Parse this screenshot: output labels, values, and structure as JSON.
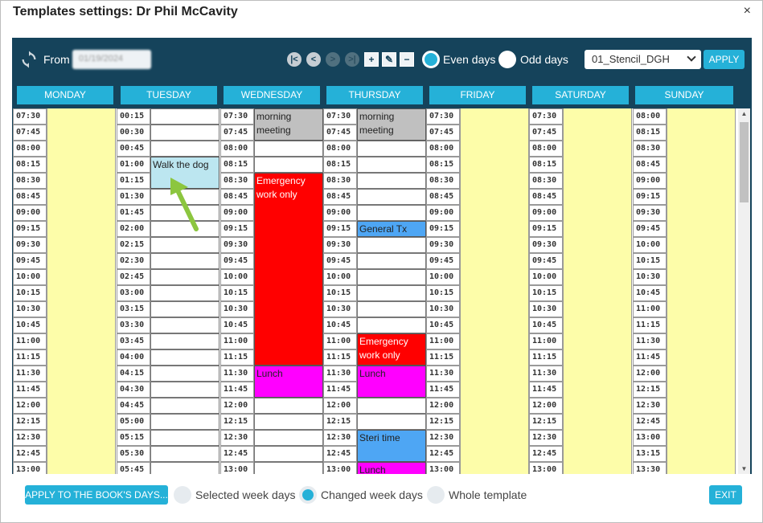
{
  "window": {
    "title": "Templates settings: Dr Phil McCavity",
    "close": "×"
  },
  "toolbar": {
    "from_label": "From",
    "from_value": "01/19/2024",
    "nav": [
      "|<",
      "<",
      ">",
      ">|"
    ],
    "tools": [
      "+",
      "✎",
      "−"
    ],
    "even_days": "Even days",
    "odd_days": "Odd days",
    "stencil": "01_Stencil_DGH",
    "apply": "APPLY"
  },
  "days": [
    "MONDAY",
    "TUESDAY",
    "WEDNESDAY",
    "THURSDAY",
    "FRIDAY",
    "SATURDAY",
    "SUNDAY"
  ],
  "times": {
    "monday": [
      "07:30",
      "07:45",
      "08:00",
      "08:15",
      "08:30",
      "08:45",
      "09:00",
      "09:15",
      "09:30",
      "09:45",
      "10:00",
      "10:15",
      "10:30",
      "10:45",
      "11:00",
      "11:15",
      "11:30",
      "11:45",
      "12:00",
      "12:15",
      "12:30",
      "12:45",
      "13:00"
    ],
    "tuesday": [
      "00:15",
      "00:30",
      "00:45",
      "01:00",
      "01:15",
      "01:30",
      "01:45",
      "02:00",
      "02:15",
      "02:30",
      "02:45",
      "03:00",
      "03:15",
      "03:30",
      "03:45",
      "04:00",
      "04:15",
      "04:30",
      "04:45",
      "05:00",
      "05:15",
      "05:30",
      "05:45"
    ],
    "wednesday": [
      "07:30",
      "07:45",
      "08:00",
      "08:15",
      "08:30",
      "08:45",
      "09:00",
      "09:15",
      "09:30",
      "09:45",
      "10:00",
      "10:15",
      "10:30",
      "10:45",
      "11:00",
      "11:15",
      "11:30",
      "11:45",
      "12:00",
      "12:15",
      "12:30",
      "12:45",
      "13:00"
    ],
    "thursday": [
      "07:30",
      "07:45",
      "08:00",
      "08:15",
      "08:30",
      "08:45",
      "09:00",
      "09:15",
      "09:30",
      "09:45",
      "10:00",
      "10:15",
      "10:30",
      "10:45",
      "11:00",
      "11:15",
      "11:30",
      "11:45",
      "12:00",
      "12:15",
      "12:30",
      "12:45",
      "13:00"
    ],
    "friday": [
      "07:30",
      "07:45",
      "08:00",
      "08:15",
      "08:30",
      "08:45",
      "09:00",
      "09:15",
      "09:30",
      "09:45",
      "10:00",
      "10:15",
      "10:30",
      "10:45",
      "11:00",
      "11:15",
      "11:30",
      "11:45",
      "12:00",
      "12:15",
      "12:30",
      "12:45",
      "13:00"
    ],
    "saturday": [
      "07:30",
      "07:45",
      "08:00",
      "08:15",
      "08:30",
      "08:45",
      "09:00",
      "09:15",
      "09:30",
      "09:45",
      "10:00",
      "10:15",
      "10:30",
      "10:45",
      "11:00",
      "11:15",
      "11:30",
      "11:45",
      "12:00",
      "12:15",
      "12:30",
      "12:45",
      "13:00"
    ],
    "sunday": [
      "08:00",
      "08:15",
      "08:30",
      "08:45",
      "09:00",
      "09:15",
      "09:30",
      "09:45",
      "10:00",
      "10:15",
      "10:30",
      "10:45",
      "11:00",
      "11:15",
      "11:30",
      "11:45",
      "12:00",
      "12:15",
      "12:30",
      "12:45",
      "13:00",
      "13:15",
      "13:30"
    ]
  },
  "events": {
    "tue_walk": "Walk the dog",
    "wed_meeting": "morning meeting",
    "wed_emergency": "Emergency work only",
    "wed_lunch": "Lunch",
    "thu_meeting": "morning meeting",
    "thu_general": "General Tx",
    "thu_emergency": "Emergency work only",
    "thu_lunch": "Lunch",
    "thu_steri": "Steri time",
    "thu_lunch2": "Lunch"
  },
  "colors": {
    "header": "#15435b",
    "accent": "#25b1d8",
    "available": "#fdfda9",
    "meeting": "#c0c0c0",
    "emergency": "#ff0000",
    "lunch": "#ff00ff",
    "general": "#4ea6f4",
    "personal": "#bce6f0"
  },
  "footer": {
    "apply_book": "APPLY TO THE BOOK'S DAYS...",
    "selected_week_days": "Selected week days",
    "changed_week_days": "Changed week days",
    "whole_template": "Whole template",
    "exit": "EXIT"
  }
}
